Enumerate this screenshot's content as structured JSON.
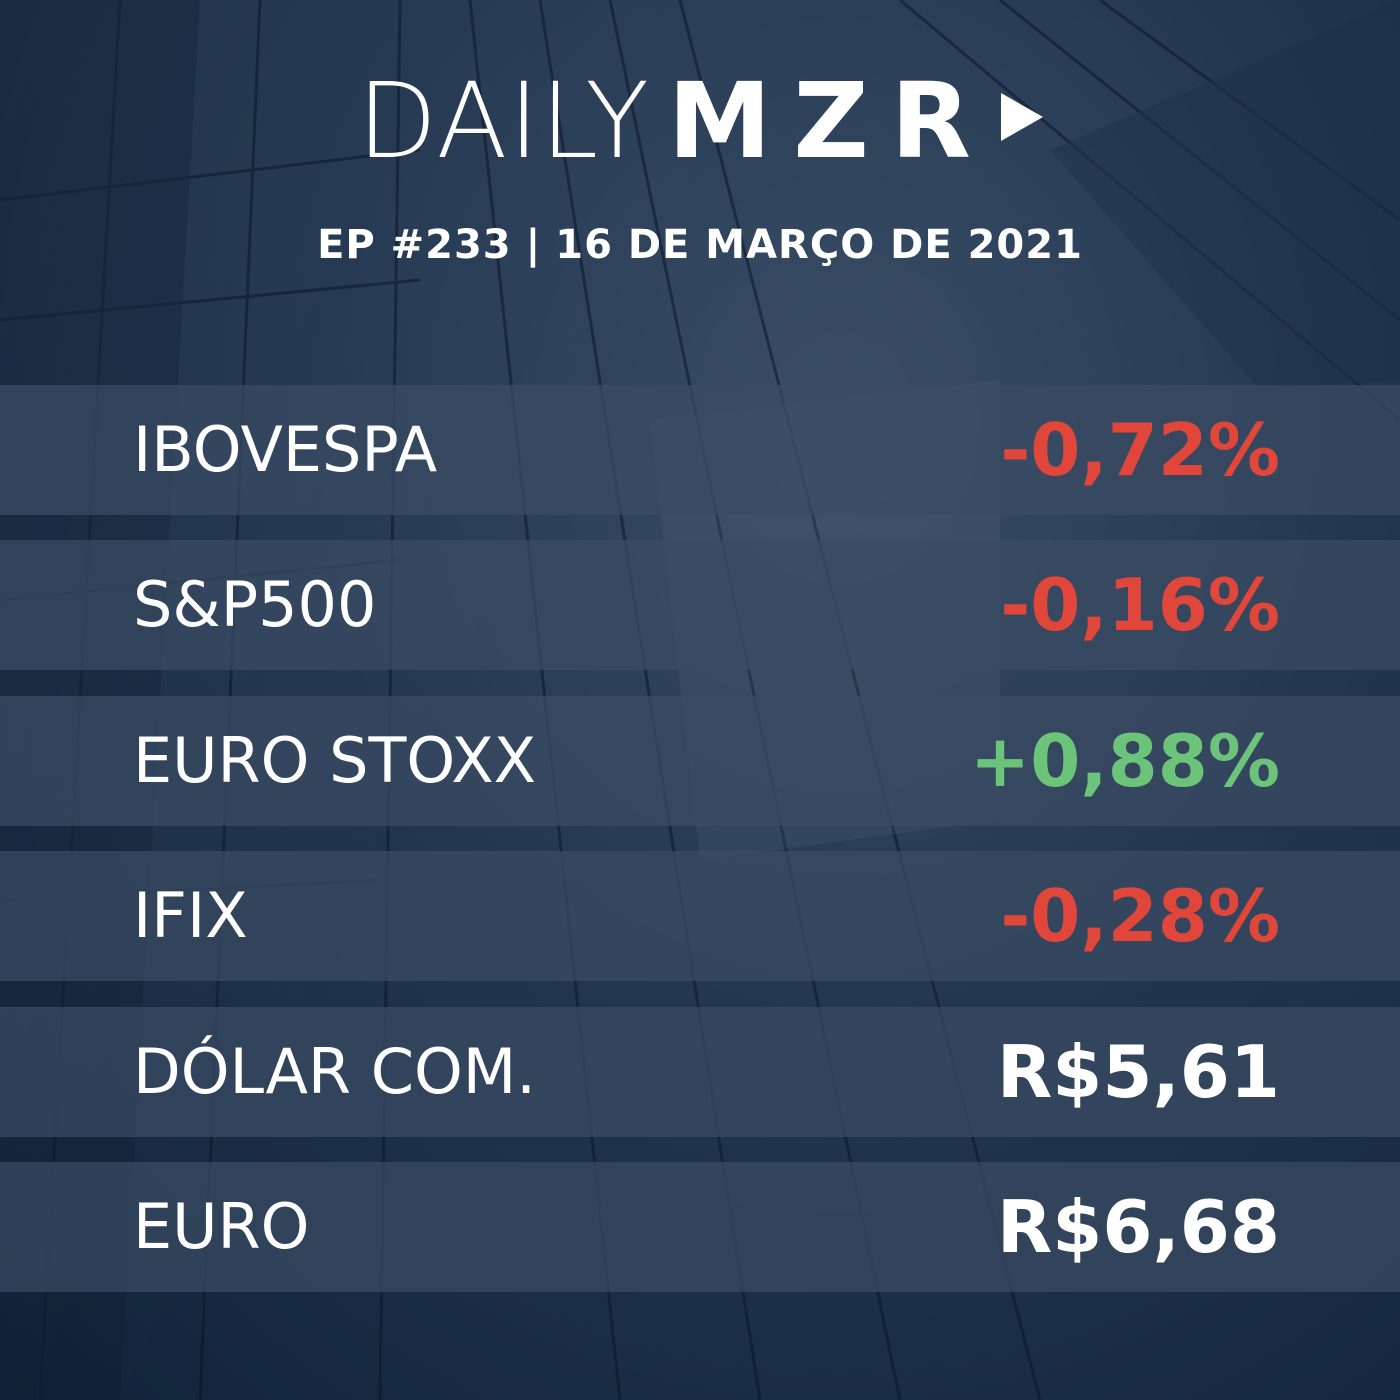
{
  "header": {
    "logo_light": "DAILY",
    "logo_bold": "MZR",
    "logo_icon": "play-icon",
    "episode": "EP #233",
    "separator": "|",
    "date": "16 DE MARÇO DE 2021"
  },
  "colors": {
    "negative": "#e0473a",
    "positive": "#6cc47a",
    "neutral": "#ffffff"
  },
  "rows": [
    {
      "label": "IBOVESPA",
      "value": "-0,72%",
      "trend": "negative"
    },
    {
      "label": "S&P500",
      "value": "-0,16%",
      "trend": "negative"
    },
    {
      "label": "EURO STOXX",
      "value": "+0,88%",
      "trend": "positive"
    },
    {
      "label": "IFIX",
      "value": "-0,28%",
      "trend": "negative"
    },
    {
      "label": "DÓLAR COM.",
      "value": "R$5,61",
      "trend": "neutral"
    },
    {
      "label": "EURO",
      "value": "R$6,68",
      "trend": "neutral"
    }
  ]
}
